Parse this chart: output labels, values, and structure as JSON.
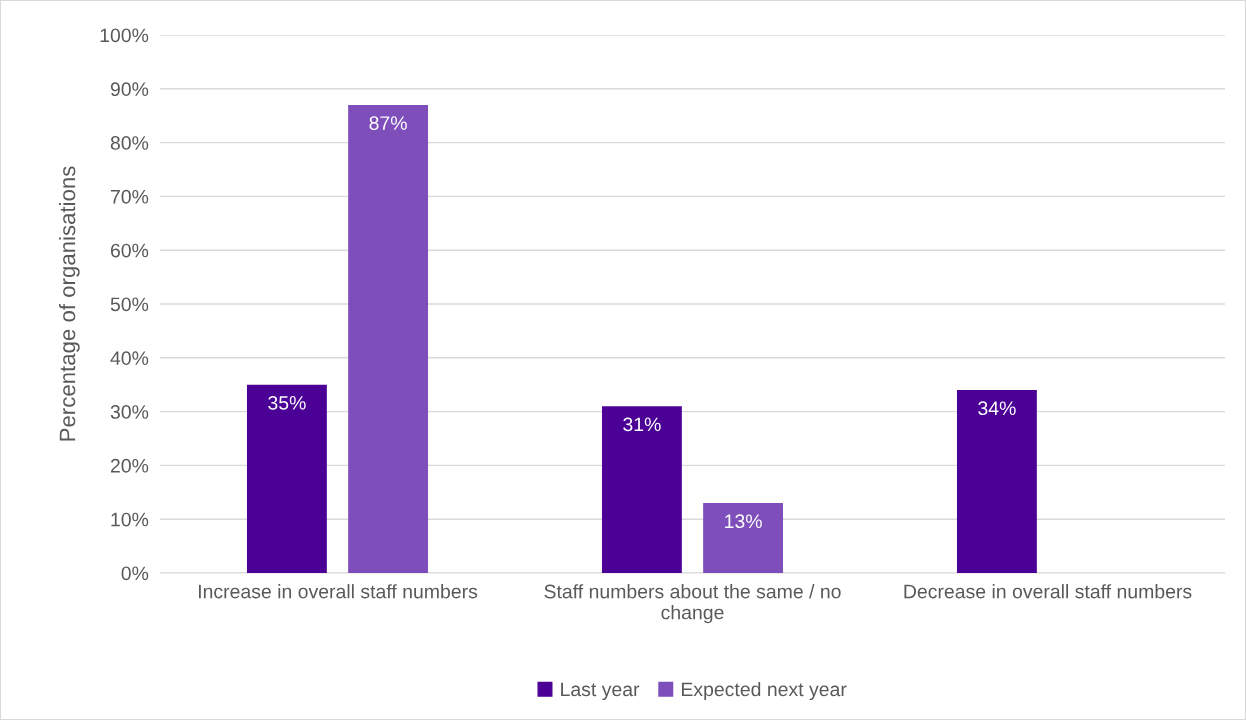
{
  "chart_data": {
    "type": "bar",
    "ylabel": "Percentage of organisations",
    "categories": [
      "Increase in overall staff numbers",
      "Staff numbers about the same / no change",
      "Decrease in overall staff numbers"
    ],
    "series": [
      {
        "name": "Last year",
        "color": "#4b0096",
        "values": [
          35,
          31,
          34
        ],
        "value_labels": [
          "35%",
          "31%",
          "34%"
        ]
      },
      {
        "name": "Expected next year",
        "color": "#7e4fbb",
        "values": [
          87,
          13,
          null
        ],
        "value_labels": [
          "87%",
          "13%",
          null
        ]
      }
    ],
    "ylim": [
      0,
      100
    ],
    "yticks": [
      {
        "value": 0,
        "label": "0%"
      },
      {
        "value": 10,
        "label": "10%"
      },
      {
        "value": 20,
        "label": "20%"
      },
      {
        "value": 30,
        "label": "30%"
      },
      {
        "value": 40,
        "label": "40%"
      },
      {
        "value": 50,
        "label": "50%"
      },
      {
        "value": 60,
        "label": "60%"
      },
      {
        "value": 70,
        "label": "70%"
      },
      {
        "value": 80,
        "label": "80%"
      },
      {
        "value": 90,
        "label": "90%"
      },
      {
        "value": 100,
        "label": "100%"
      }
    ],
    "grid": "y",
    "legend": "bottom"
  }
}
